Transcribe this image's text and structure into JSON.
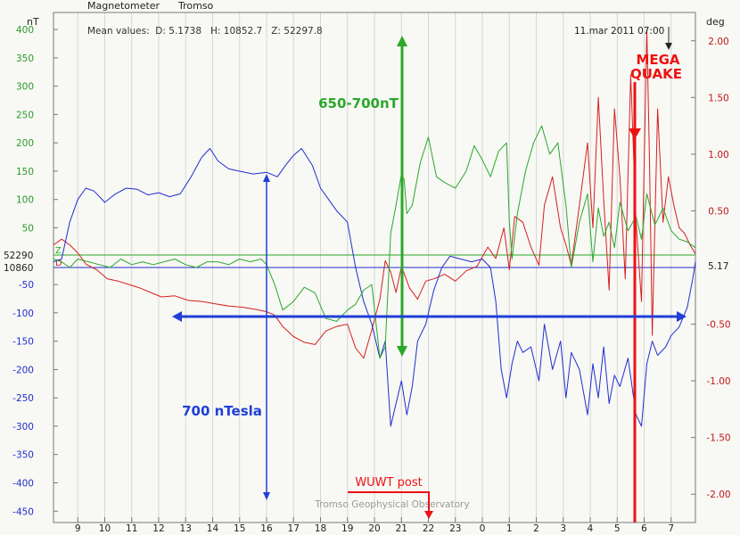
{
  "colors": {
    "background": "#f8f8f4",
    "frame": "#777777",
    "grid": "#d6d6d6",
    "d_series": "#d42020",
    "h_series": "#1f2fd0",
    "z_series": "#2aa82a",
    "annotation_red": "#ee1111",
    "annotation_blue": "#1f3fd8",
    "annotation_green": "#2aa82a",
    "text": "#222222"
  },
  "header": {
    "title": "Magnetometer",
    "station": "Tromso",
    "mean_values": "Mean values:  D: 5.1738   H: 10852.7   Z: 52297.8",
    "timestamp": "11.mar 2011 07:00",
    "left_unit": "nT",
    "right_unit": "deg"
  },
  "footer": {
    "credit": "Tromso Geophysical Observatory"
  },
  "annotations": {
    "mega_quake_line1": "MEGA",
    "mega_quake_line2": "QUAKE",
    "wuwt_post": "WUWT post",
    "green_range": "650-700nT",
    "blue_range": "700 nTesla"
  },
  "chart_data": {
    "type": "line",
    "title": "Magnetometer Tromso",
    "xlabel": "",
    "ylabel_left": "nT",
    "ylabel_right": "deg",
    "x_ticks": [
      "9",
      "10",
      "11",
      "12",
      "13",
      "14",
      "15",
      "16",
      "17",
      "18",
      "19",
      "20",
      "21",
      "22",
      "23",
      "0",
      "1",
      "2",
      "3",
      "4",
      "5",
      "6",
      "7"
    ],
    "left_ticks": [
      "400",
      "350",
      "300",
      "250",
      "200",
      "150",
      "100",
      "50",
      "-50",
      "-100",
      "-150",
      "-200",
      "-250",
      "-300",
      "-350",
      "-400",
      "-450"
    ],
    "left_ticks_values": [
      400,
      350,
      300,
      250,
      200,
      150,
      100,
      50,
      -50,
      -100,
      -150,
      -200,
      -250,
      -300,
      -350,
      -400,
      -450
    ],
    "left_ylim": [
      -470,
      430
    ],
    "baseline_labels": {
      "z": "52290",
      "h": "10860",
      "d": "5.17"
    },
    "baseline_levels": {
      "z": 2,
      "h": -20,
      "d_deg": 0.0
    },
    "right_ticks": [
      "2.00",
      "1.50",
      "1.00",
      "0.50",
      "-0.50",
      "-1.00",
      "-1.50",
      "-2.00"
    ],
    "right_ticks_values": [
      2.0,
      1.5,
      1.0,
      0.5,
      -0.5,
      -1.0,
      -1.5,
      -2.0
    ],
    "right_ylim": [
      -2.25,
      2.25
    ],
    "x_range": [
      8.1,
      31.9
    ],
    "grid": true,
    "series": [
      {
        "name": "D",
        "axis": "right",
        "points": [
          [
            8.1,
            0.2
          ],
          [
            8.4,
            0.25
          ],
          [
            8.7,
            0.2
          ],
          [
            9.0,
            0.13
          ],
          [
            9.3,
            0.03
          ],
          [
            9.7,
            -0.02
          ],
          [
            10.1,
            -0.1
          ],
          [
            10.5,
            -0.12
          ],
          [
            10.9,
            -0.15
          ],
          [
            11.3,
            -0.18
          ],
          [
            11.7,
            -0.22
          ],
          [
            12.1,
            -0.26
          ],
          [
            12.6,
            -0.25
          ],
          [
            13.1,
            -0.29
          ],
          [
            13.6,
            -0.3
          ],
          [
            14.1,
            -0.32
          ],
          [
            14.6,
            -0.34
          ],
          [
            15.1,
            -0.35
          ],
          [
            15.6,
            -0.37
          ],
          [
            16.0,
            -0.39
          ],
          [
            16.3,
            -0.42
          ],
          [
            16.6,
            -0.52
          ],
          [
            17.0,
            -0.61
          ],
          [
            17.4,
            -0.66
          ],
          [
            17.8,
            -0.68
          ],
          [
            18.2,
            -0.56
          ],
          [
            18.6,
            -0.52
          ],
          [
            19.0,
            -0.5
          ],
          [
            19.3,
            -0.71
          ],
          [
            19.6,
            -0.8
          ],
          [
            19.9,
            -0.55
          ],
          [
            20.2,
            -0.28
          ],
          [
            20.4,
            0.06
          ],
          [
            20.6,
            -0.04
          ],
          [
            20.8,
            -0.22
          ],
          [
            21.0,
            0.01
          ],
          [
            21.3,
            -0.18
          ],
          [
            21.6,
            -0.28
          ],
          [
            21.9,
            -0.12
          ],
          [
            22.2,
            -0.1
          ],
          [
            22.6,
            -0.06
          ],
          [
            23.0,
            -0.12
          ],
          [
            23.4,
            -0.03
          ],
          [
            23.8,
            0.01
          ],
          [
            24.2,
            0.18
          ],
          [
            24.5,
            0.08
          ],
          [
            24.8,
            0.35
          ],
          [
            25.0,
            -0.02
          ],
          [
            25.2,
            0.45
          ],
          [
            25.5,
            0.4
          ],
          [
            25.8,
            0.18
          ],
          [
            26.1,
            0.02
          ],
          [
            26.3,
            0.55
          ],
          [
            26.6,
            0.8
          ],
          [
            26.9,
            0.35
          ],
          [
            27.1,
            0.2
          ],
          [
            27.3,
            0.02
          ],
          [
            27.6,
            0.55
          ],
          [
            27.9,
            1.1
          ],
          [
            28.1,
            0.35
          ],
          [
            28.3,
            1.5
          ],
          [
            28.5,
            0.6
          ],
          [
            28.7,
            -0.2
          ],
          [
            28.9,
            1.4
          ],
          [
            29.1,
            0.8
          ],
          [
            29.3,
            -0.1
          ],
          [
            29.5,
            1.7
          ],
          [
            29.7,
            0.4
          ],
          [
            29.9,
            -0.3
          ],
          [
            30.1,
            2.1
          ],
          [
            30.2,
            0.9
          ],
          [
            30.3,
            -0.6
          ],
          [
            30.5,
            1.4
          ],
          [
            30.7,
            0.4
          ],
          [
            30.9,
            0.8
          ],
          [
            31.1,
            0.55
          ],
          [
            31.3,
            0.35
          ],
          [
            31.5,
            0.3
          ],
          [
            31.7,
            0.2
          ],
          [
            31.9,
            0.12
          ]
        ]
      },
      {
        "name": "H",
        "axis": "left",
        "points": [
          [
            8.1,
            -10
          ],
          [
            8.4,
            -5
          ],
          [
            8.7,
            60
          ],
          [
            9.0,
            100
          ],
          [
            9.3,
            120
          ],
          [
            9.6,
            115
          ],
          [
            10.0,
            95
          ],
          [
            10.4,
            110
          ],
          [
            10.8,
            120
          ],
          [
            11.2,
            118
          ],
          [
            11.6,
            108
          ],
          [
            12.0,
            112
          ],
          [
            12.4,
            105
          ],
          [
            12.8,
            110
          ],
          [
            13.2,
            140
          ],
          [
            13.6,
            175
          ],
          [
            13.9,
            190
          ],
          [
            14.2,
            168
          ],
          [
            14.6,
            154
          ],
          [
            15.0,
            150
          ],
          [
            15.5,
            145
          ],
          [
            16.0,
            148
          ],
          [
            16.4,
            140
          ],
          [
            16.7,
            160
          ],
          [
            17.0,
            178
          ],
          [
            17.3,
            190
          ],
          [
            17.7,
            160
          ],
          [
            18.0,
            120
          ],
          [
            18.3,
            100
          ],
          [
            18.6,
            80
          ],
          [
            19.0,
            60
          ],
          [
            19.3,
            -20
          ],
          [
            19.6,
            -80
          ],
          [
            19.9,
            -120
          ],
          [
            20.2,
            -180
          ],
          [
            20.4,
            -150
          ],
          [
            20.6,
            -300
          ],
          [
            20.8,
            -260
          ],
          [
            21.0,
            -220
          ],
          [
            21.2,
            -280
          ],
          [
            21.4,
            -230
          ],
          [
            21.6,
            -150
          ],
          [
            21.9,
            -120
          ],
          [
            22.2,
            -60
          ],
          [
            22.5,
            -20
          ],
          [
            22.8,
            0
          ],
          [
            23.2,
            -5
          ],
          [
            23.6,
            -10
          ],
          [
            24.0,
            -5
          ],
          [
            24.3,
            -20
          ],
          [
            24.5,
            -80
          ],
          [
            24.7,
            -200
          ],
          [
            24.9,
            -250
          ],
          [
            25.1,
            -190
          ],
          [
            25.3,
            -150
          ],
          [
            25.5,
            -170
          ],
          [
            25.8,
            -160
          ],
          [
            26.1,
            -220
          ],
          [
            26.3,
            -120
          ],
          [
            26.6,
            -200
          ],
          [
            26.9,
            -150
          ],
          [
            27.1,
            -250
          ],
          [
            27.3,
            -170
          ],
          [
            27.6,
            -200
          ],
          [
            27.9,
            -280
          ],
          [
            28.1,
            -190
          ],
          [
            28.3,
            -250
          ],
          [
            28.5,
            -160
          ],
          [
            28.7,
            -260
          ],
          [
            28.9,
            -210
          ],
          [
            29.1,
            -230
          ],
          [
            29.4,
            -180
          ],
          [
            29.7,
            -280
          ],
          [
            29.9,
            -300
          ],
          [
            30.1,
            -190
          ],
          [
            30.3,
            -150
          ],
          [
            30.5,
            -175
          ],
          [
            30.8,
            -160
          ],
          [
            31.0,
            -140
          ],
          [
            31.3,
            -125
          ],
          [
            31.6,
            -90
          ],
          [
            31.8,
            -40
          ],
          [
            31.9,
            -10
          ]
        ]
      },
      {
        "name": "Z",
        "axis": "left",
        "points": [
          [
            8.1,
            -5
          ],
          [
            8.4,
            -10
          ],
          [
            8.7,
            -20
          ],
          [
            9.0,
            -5
          ],
          [
            9.4,
            -10
          ],
          [
            9.8,
            -15
          ],
          [
            10.2,
            -20
          ],
          [
            10.6,
            -5
          ],
          [
            11.0,
            -15
          ],
          [
            11.4,
            -10
          ],
          [
            11.8,
            -15
          ],
          [
            12.2,
            -10
          ],
          [
            12.6,
            -5
          ],
          [
            13.0,
            -15
          ],
          [
            13.4,
            -20
          ],
          [
            13.8,
            -10
          ],
          [
            14.2,
            -10
          ],
          [
            14.6,
            -15
          ],
          [
            15.0,
            -5
          ],
          [
            15.4,
            -10
          ],
          [
            15.8,
            -5
          ],
          [
            16.0,
            -15
          ],
          [
            16.3,
            -50
          ],
          [
            16.6,
            -95
          ],
          [
            17.0,
            -80
          ],
          [
            17.4,
            -55
          ],
          [
            17.8,
            -65
          ],
          [
            18.2,
            -110
          ],
          [
            18.6,
            -115
          ],
          [
            19.0,
            -95
          ],
          [
            19.3,
            -85
          ],
          [
            19.6,
            -60
          ],
          [
            19.9,
            -50
          ],
          [
            20.2,
            -180
          ],
          [
            20.4,
            -160
          ],
          [
            20.6,
            40
          ],
          [
            20.8,
            90
          ],
          [
            21.0,
            145
          ],
          [
            21.1,
            135
          ],
          [
            21.2,
            75
          ],
          [
            21.4,
            90
          ],
          [
            21.7,
            165
          ],
          [
            22.0,
            210
          ],
          [
            22.3,
            140
          ],
          [
            22.6,
            130
          ],
          [
            23.0,
            120
          ],
          [
            23.4,
            150
          ],
          [
            23.7,
            195
          ],
          [
            24.0,
            170
          ],
          [
            24.3,
            140
          ],
          [
            24.6,
            185
          ],
          [
            24.9,
            200
          ],
          [
            25.0,
            60
          ],
          [
            25.1,
            -5
          ],
          [
            25.3,
            75
          ],
          [
            25.6,
            150
          ],
          [
            25.9,
            200
          ],
          [
            26.2,
            230
          ],
          [
            26.5,
            180
          ],
          [
            26.8,
            200
          ],
          [
            27.1,
            90
          ],
          [
            27.3,
            -20
          ],
          [
            27.6,
            60
          ],
          [
            27.9,
            110
          ],
          [
            28.1,
            -10
          ],
          [
            28.3,
            85
          ],
          [
            28.5,
            35
          ],
          [
            28.7,
            60
          ],
          [
            28.9,
            15
          ],
          [
            29.1,
            95
          ],
          [
            29.4,
            45
          ],
          [
            29.7,
            70
          ],
          [
            29.9,
            30
          ],
          [
            30.1,
            110
          ],
          [
            30.4,
            55
          ],
          [
            30.7,
            85
          ],
          [
            31.0,
            45
          ],
          [
            31.3,
            30
          ],
          [
            31.6,
            25
          ],
          [
            31.9,
            15
          ]
        ]
      }
    ]
  }
}
